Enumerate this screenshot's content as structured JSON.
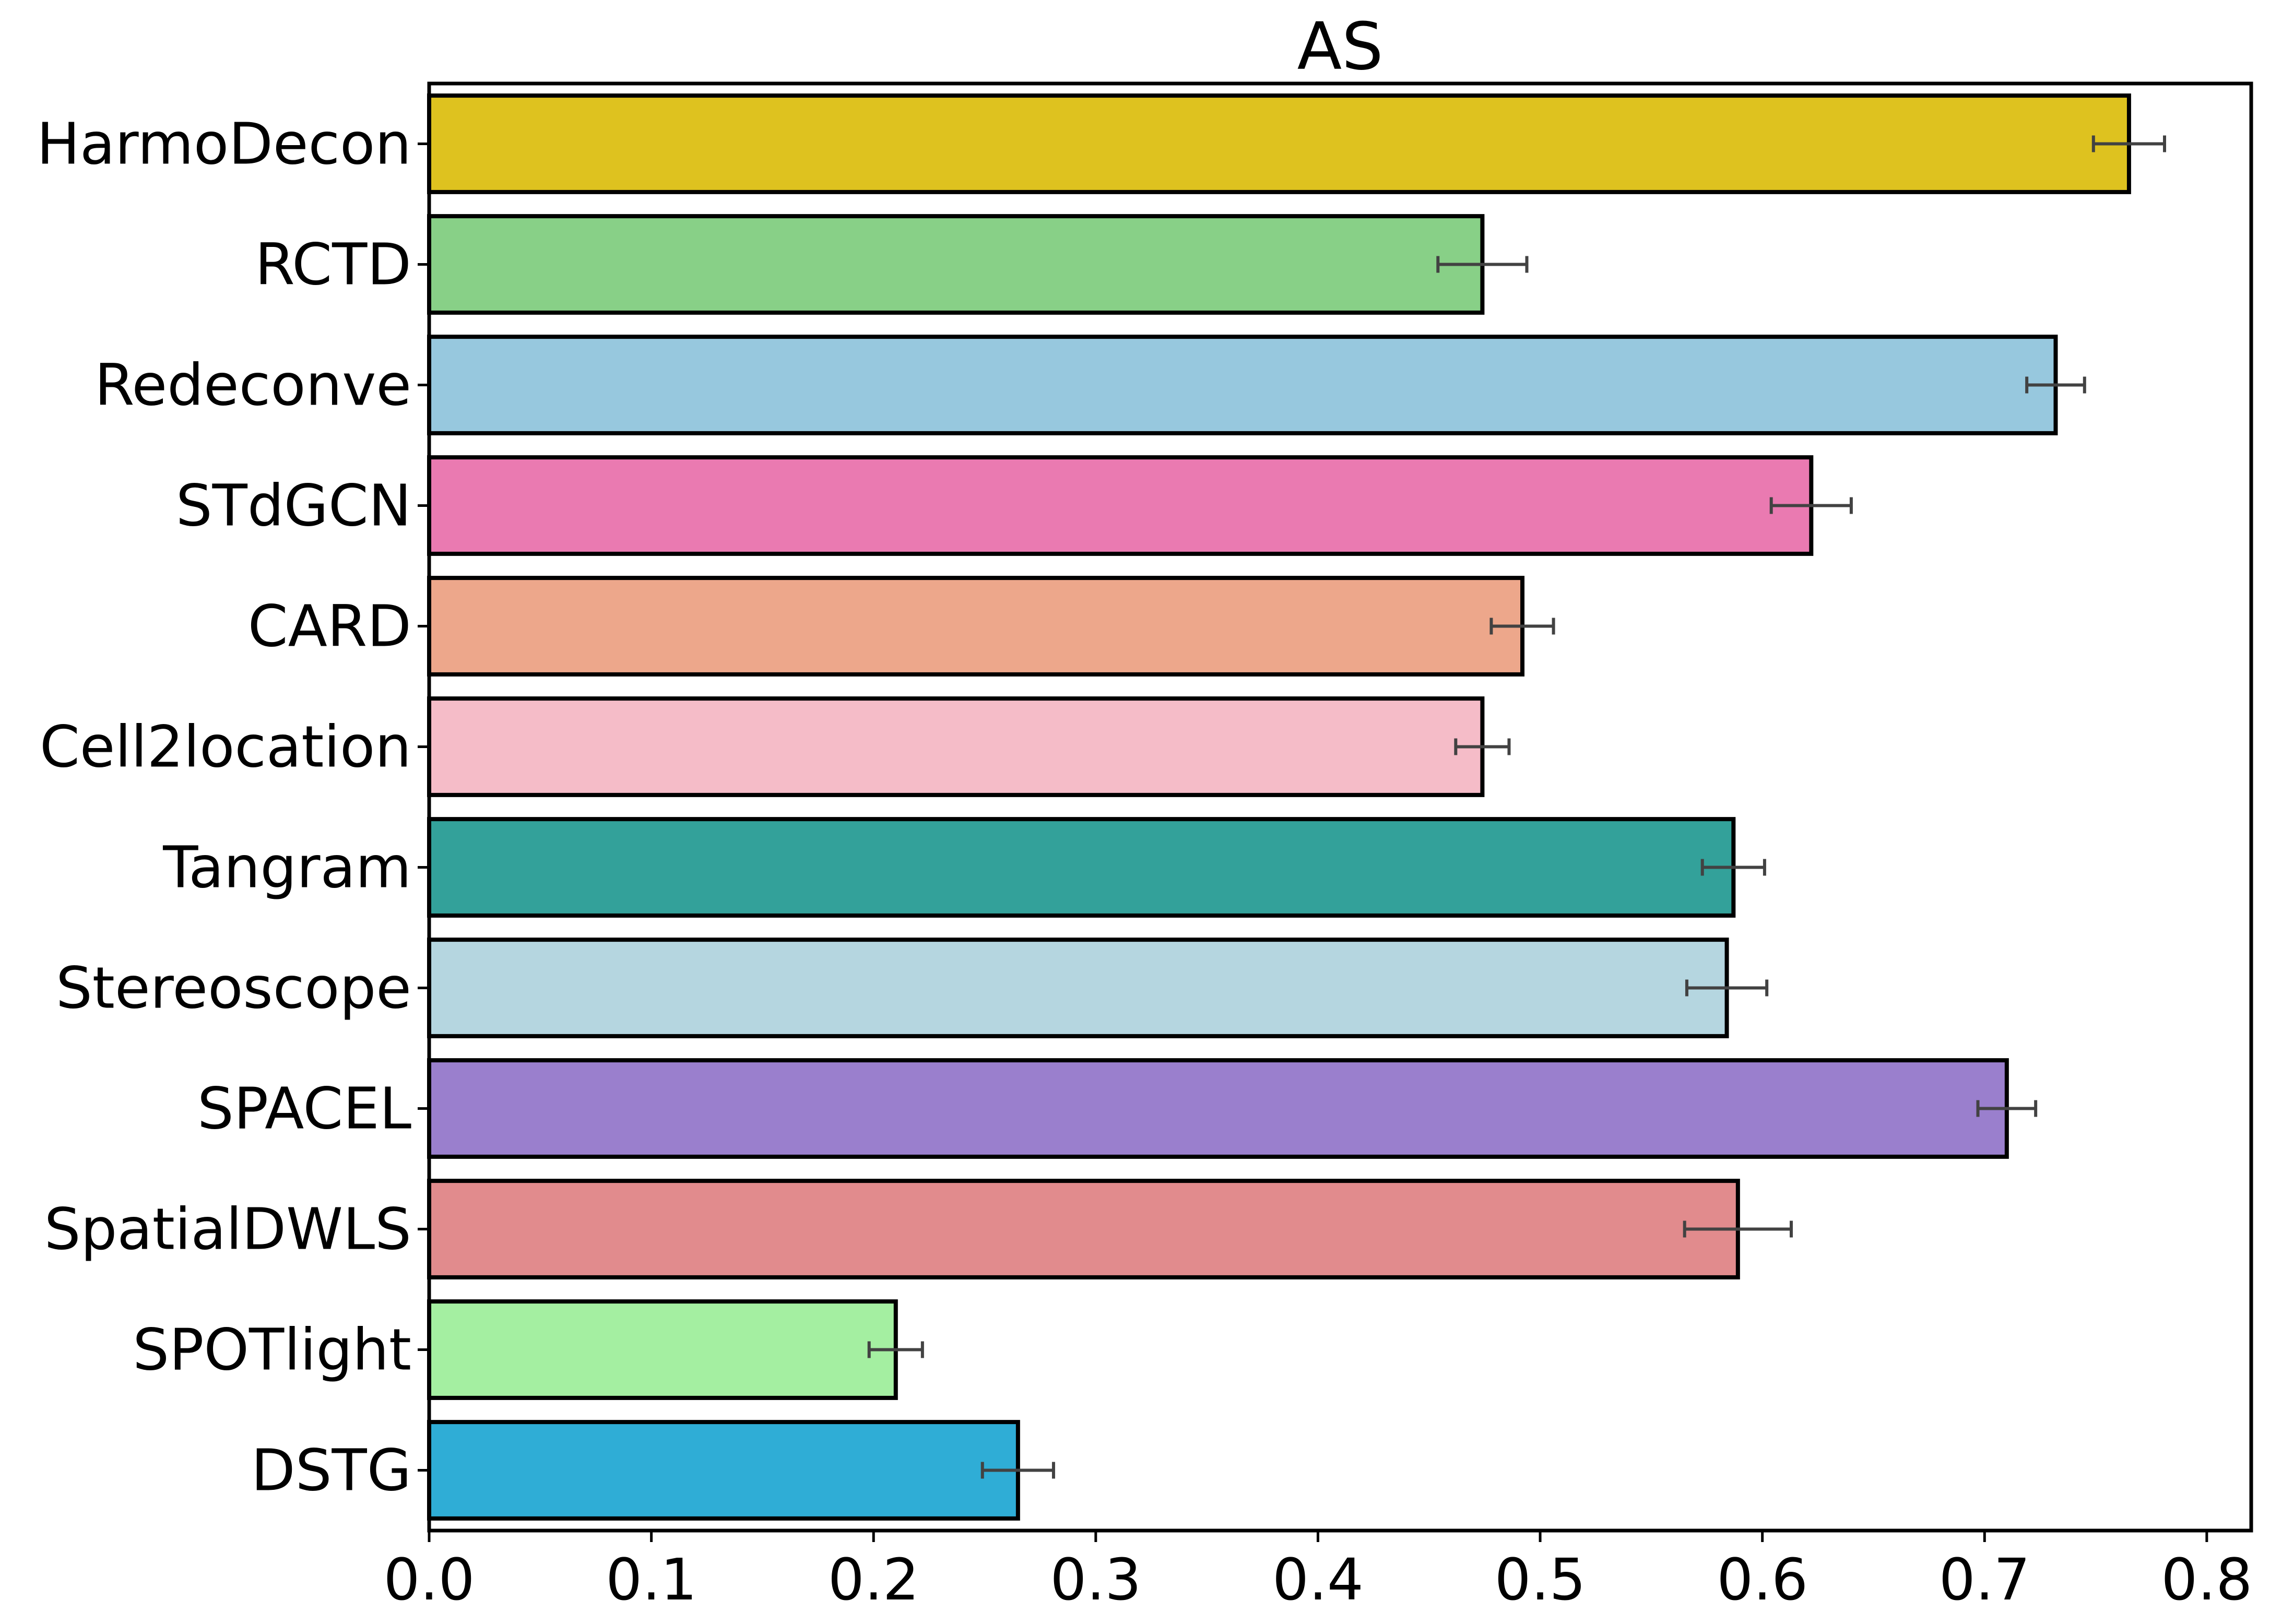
{
  "chart_data": {
    "type": "bar",
    "orientation": "horizontal",
    "title": "AS",
    "xlabel": "",
    "ylabel": "",
    "xlim": [
      0,
      0.82
    ],
    "xticks": [
      0.0,
      0.1,
      0.2,
      0.3,
      0.4,
      0.5,
      0.6,
      0.7,
      0.8
    ],
    "xtick_labels": [
      "0.0",
      "0.1",
      "0.2",
      "0.3",
      "0.4",
      "0.5",
      "0.6",
      "0.7",
      "0.8"
    ],
    "grid": false,
    "categories": [
      "HarmoDecon",
      "RCTD",
      "Redeconve",
      "STdGCN",
      "CARD",
      "Cell2location",
      "Tangram",
      "Stereoscope",
      "SPACEL",
      "SpatialDWLS",
      "SPOTlight",
      "DSTG"
    ],
    "values": [
      0.765,
      0.474,
      0.732,
      0.622,
      0.492,
      0.474,
      0.587,
      0.584,
      0.71,
      0.589,
      0.21,
      0.265
    ],
    "error": [
      0.016,
      0.02,
      0.013,
      0.018,
      0.014,
      0.012,
      0.014,
      0.018,
      0.013,
      0.024,
      0.012,
      0.016
    ],
    "colors": [
      "#DEC21F",
      "#88D087",
      "#97C8DE",
      "#EA7AB1",
      "#EDA78B",
      "#F5BCC8",
      "#33A19A",
      "#B5D6E0",
      "#9A7FCD",
      "#E18B8D",
      "#A4EFA1",
      "#2FADD6"
    ]
  }
}
